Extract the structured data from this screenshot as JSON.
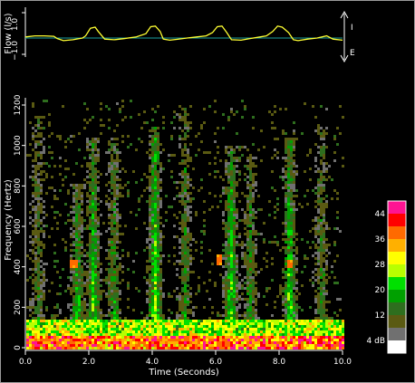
{
  "flow_panel": {
    "ylabel": "Flow (l/s)",
    "tick_top": "1.0",
    "tick_bottom": "−1.0",
    "inspiration_label": "I",
    "expiration_label": "E"
  },
  "spectrogram": {
    "ylabel": "Frequency (Hertz)",
    "xlabel": "Time (Seconds)",
    "y_ticks": [
      "0",
      "200",
      "400",
      "600",
      "800",
      "1000",
      "1200"
    ],
    "x_ticks": [
      "0.0",
      "2.0",
      "4.0",
      "6.0",
      "8.0",
      "10.0"
    ]
  },
  "colorbar": {
    "labels": [
      "44",
      "36",
      "28",
      "20",
      "12",
      "4 dB"
    ],
    "colors": [
      "#ff1493",
      "#ff0000",
      "#ff6a00",
      "#ffb000",
      "#ffff00",
      "#b8ff00",
      "#00e000",
      "#00a000",
      "#2e6e1e",
      "#5a5a12",
      "#707070",
      "#ffffff"
    ]
  },
  "chart_data": [
    {
      "type": "line",
      "title": "",
      "xlabel": "",
      "ylabel": "Flow (l/s)",
      "xlim": [
        0,
        10
      ],
      "ylim": [
        -1,
        1
      ],
      "series": [
        {
          "x": [
            0,
            0.3,
            0.6,
            0.9,
            1.0,
            1.2,
            1.5,
            1.8,
            1.9,
            2.05,
            2.2,
            2.3,
            2.5,
            2.8,
            3.1,
            3.5,
            3.8,
            3.95,
            4.1,
            4.25,
            4.35,
            4.55,
            4.8,
            5.1,
            5.4,
            5.7,
            5.9,
            6.05,
            6.2,
            6.35,
            6.5,
            6.8,
            7.1,
            7.4,
            7.6,
            7.8,
            7.95,
            8.1,
            8.3,
            8.45,
            8.6,
            8.9,
            9.2,
            9.5,
            9.7,
            10.0
          ],
          "y": [
            0.05,
            0.1,
            0.1,
            0.08,
            -0.02,
            -0.12,
            -0.08,
            0.0,
            0.1,
            0.45,
            0.5,
            0.3,
            -0.05,
            -0.08,
            -0.03,
            0.05,
            0.2,
            0.52,
            0.55,
            0.3,
            -0.05,
            -0.1,
            -0.06,
            0.0,
            0.05,
            0.1,
            0.25,
            0.52,
            0.55,
            0.25,
            -0.08,
            -0.1,
            -0.02,
            0.05,
            0.1,
            0.3,
            0.55,
            0.5,
            0.25,
            -0.08,
            -0.12,
            -0.05,
            0.0,
            0.1,
            -0.05,
            -0.1
          ]
        }
      ]
    },
    {
      "type": "heatmap",
      "title": "",
      "xlabel": "Time (Seconds)",
      "ylabel": "Frequency (Hertz)",
      "xlim": [
        0,
        10
      ],
      "ylim": [
        0,
        1300
      ],
      "color_scale": "dB",
      "colorbar_ticks": [
        44,
        36,
        28,
        20,
        12,
        4
      ],
      "bursts": [
        {
          "t": 0.35,
          "f_top": 1150,
          "level": 14
        },
        {
          "t": 1.6,
          "f_top": 820,
          "level": 22
        },
        {
          "t": 2.1,
          "f_top": 1050,
          "level": 24
        },
        {
          "t": 2.75,
          "f_top": 1050,
          "level": 18
        },
        {
          "t": 4.05,
          "f_top": 1100,
          "level": 28
        },
        {
          "t": 5.0,
          "f_top": 1200,
          "level": 16
        },
        {
          "t": 6.45,
          "f_top": 1000,
          "level": 26
        },
        {
          "t": 7.05,
          "f_top": 950,
          "level": 18
        },
        {
          "t": 8.3,
          "f_top": 1050,
          "level": 26
        },
        {
          "t": 9.3,
          "f_top": 1100,
          "level": 16
        }
      ],
      "tones": [
        {
          "t": 1.5,
          "f": 420,
          "level": 40
        },
        {
          "t": 6.1,
          "f": 440,
          "level": 40
        },
        {
          "t": 8.3,
          "f": 420,
          "level": 40
        }
      ]
    }
  ]
}
